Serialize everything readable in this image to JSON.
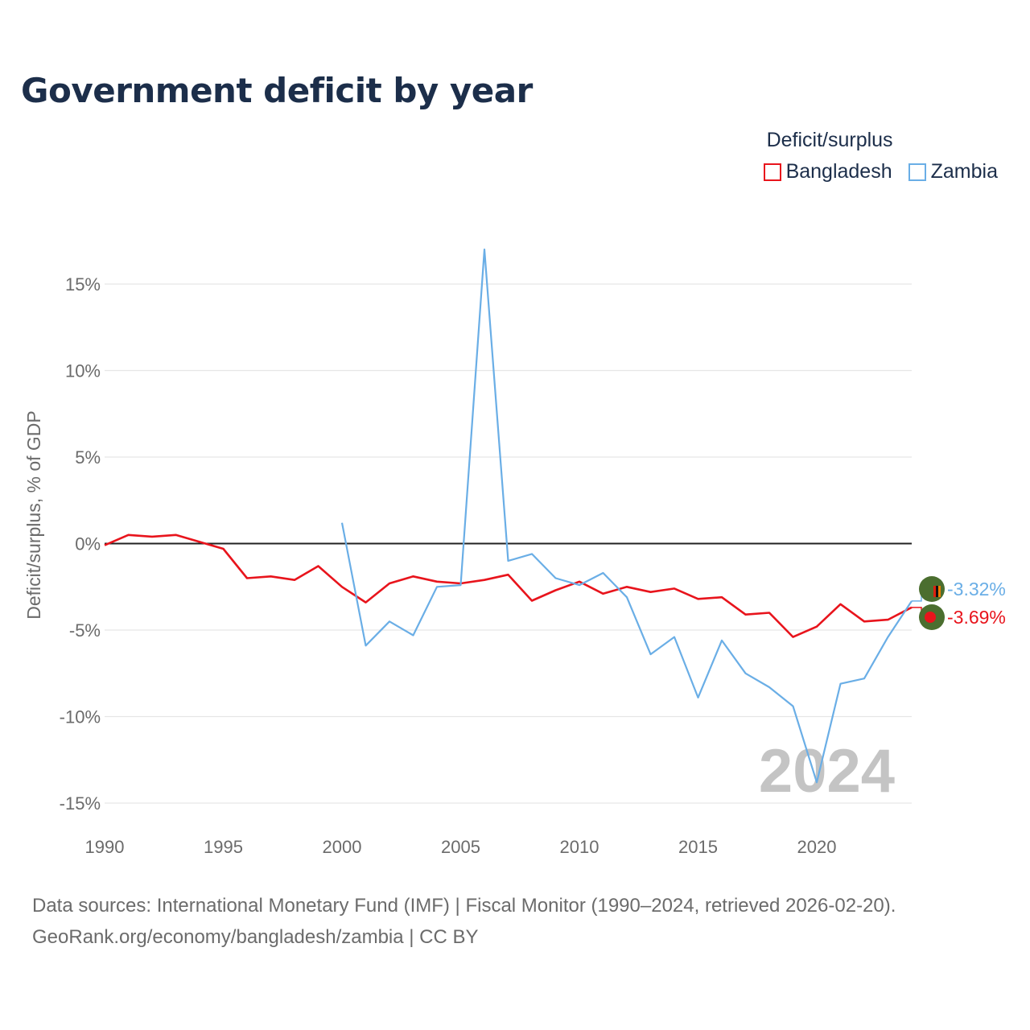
{
  "title": "Government deficit by year",
  "legend": {
    "title": "Deficit/surplus",
    "items": [
      {
        "label": "Bangladesh",
        "color": "#e8141c"
      },
      {
        "label": "Zambia",
        "color": "#6aaee6"
      }
    ]
  },
  "chart_data": {
    "type": "line",
    "title": "Government deficit by year",
    "xlabel": "",
    "ylabel": "Deficit/surplus, % of GDP",
    "xlim": [
      1990,
      2024
    ],
    "ylim": [
      -15,
      17
    ],
    "xticks": [
      1990,
      1995,
      2000,
      2005,
      2010,
      2015,
      2020
    ],
    "yticks": [
      15,
      10,
      5,
      0,
      -5,
      -10,
      -15
    ],
    "ytick_labels": [
      "15%",
      "10%",
      "5%",
      "0%",
      "-5%",
      "-10%",
      "-15%"
    ],
    "grid": true,
    "legend_position": "top-right",
    "year_watermark": "2024",
    "series": [
      {
        "name": "Bangladesh",
        "color": "#e8141c",
        "x": [
          1990,
          1991,
          1992,
          1993,
          1994,
          1995,
          1996,
          1997,
          1998,
          1999,
          2000,
          2001,
          2002,
          2003,
          2004,
          2005,
          2006,
          2007,
          2008,
          2009,
          2010,
          2011,
          2012,
          2013,
          2014,
          2015,
          2016,
          2017,
          2018,
          2019,
          2020,
          2021,
          2022,
          2023,
          2024
        ],
        "values": [
          -0.1,
          0.5,
          0.4,
          0.5,
          0.1,
          -0.3,
          -2.0,
          -1.9,
          -2.1,
          -1.3,
          -2.5,
          -3.4,
          -2.3,
          -1.9,
          -2.2,
          -2.3,
          -2.1,
          -1.8,
          -3.3,
          -2.7,
          -2.2,
          -2.9,
          -2.5,
          -2.8,
          -2.6,
          -3.2,
          -3.1,
          -4.1,
          -4.0,
          -5.4,
          -4.8,
          -3.5,
          -4.5,
          -4.4,
          -3.69
        ],
        "end_label": "-3.69%"
      },
      {
        "name": "Zambia",
        "color": "#6aaee6",
        "x": [
          2000,
          2001,
          2002,
          2003,
          2004,
          2005,
          2006,
          2007,
          2008,
          2009,
          2010,
          2011,
          2012,
          2013,
          2014,
          2015,
          2016,
          2017,
          2018,
          2019,
          2020,
          2021,
          2022,
          2023,
          2024
        ],
        "values": [
          1.2,
          -5.9,
          -4.5,
          -5.3,
          -2.5,
          -2.4,
          17.0,
          -1.0,
          -0.6,
          -2.0,
          -2.4,
          -1.7,
          -3.1,
          -6.4,
          -5.4,
          -8.9,
          -5.6,
          -7.5,
          -8.3,
          -9.4,
          -13.8,
          -8.1,
          -7.8,
          -5.4,
          -3.32
        ],
        "end_label": "-3.32%"
      }
    ]
  },
  "source": {
    "line1": "Data sources: International Monetary Fund (IMF) | Fiscal Monitor (1990–2024, retrieved 2026-02-20).",
    "line2": "GeoRank.org/economy/bangladesh/zambia | CC BY"
  }
}
